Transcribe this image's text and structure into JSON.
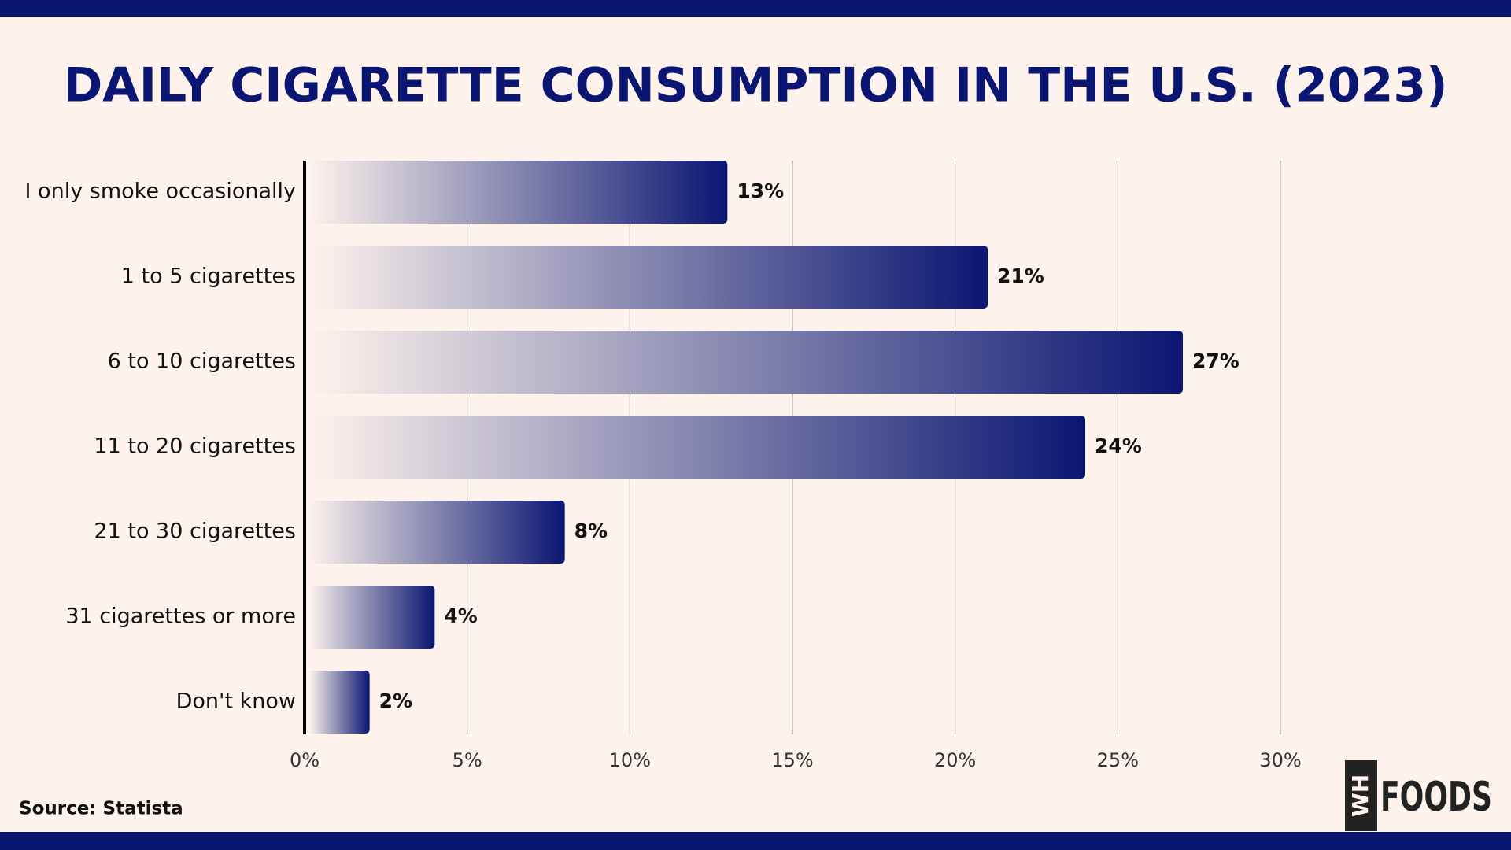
{
  "chart_data": {
    "type": "bar",
    "orientation": "horizontal",
    "title": "DAILY CIGARETTE CONSUMPTION IN THE U.S. (2023)",
    "categories": [
      "I only smoke occasionally",
      "1 to 5 cigarettes",
      "6 to 10 cigarettes",
      "11 to 20 cigarettes",
      "21 to 30 cigarettes",
      "31 cigarettes or more",
      "Don't know"
    ],
    "values": [
      13,
      21,
      27,
      24,
      8,
      4,
      2
    ],
    "value_labels": [
      "13%",
      "21%",
      "27%",
      "24%",
      "8%",
      "4%",
      "2%"
    ],
    "color": "#0a1672",
    "xlim": [
      0,
      30
    ],
    "xticks": [
      {
        "value": 0,
        "label": "0%"
      },
      {
        "value": 5,
        "label": "5%"
      },
      {
        "value": 10,
        "label": "10%"
      },
      {
        "value": 15,
        "label": "15%"
      },
      {
        "value": 20,
        "label": "20%"
      },
      {
        "value": 25,
        "label": "25%"
      },
      {
        "value": 30,
        "label": "30%"
      }
    ],
    "grid": true,
    "source": "Source: Statista"
  },
  "logo": {
    "mark": "WH",
    "text": "FOODS"
  }
}
